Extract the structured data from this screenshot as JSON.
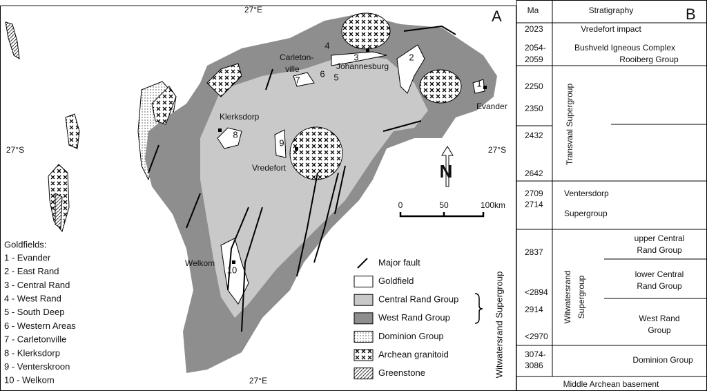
{
  "panel_a": {
    "letter": "A",
    "coords": {
      "top": "27°E",
      "bottom": "27°E",
      "left": "27°S",
      "right": "27°S"
    },
    "places": {
      "klerksdorp": "Klerksdorp",
      "vredefort": "Vredefort",
      "welkom": "Welkom",
      "carletonville": [
        "Carleton-",
        "ville"
      ],
      "johannesburg": "Johannesburg",
      "evander": "Evander"
    },
    "goldfield_numbers": [
      "1",
      "2",
      "3",
      "4",
      "5",
      "6",
      "7",
      "8",
      "9",
      "10"
    ],
    "goldfields_title": "Goldfields:",
    "goldfields": [
      "1 - Evander",
      "2 - East Rand",
      "3 - Central Rand",
      "4 - West Rand",
      "5 - South Deep",
      "6 - Western Areas",
      "7 - Carletonville",
      "8 - Klerksdorp",
      "9 - Venterskroon",
      "10 - Welkom"
    ],
    "scale": [
      "0",
      "50",
      "100km"
    ],
    "north": "N",
    "legend": [
      "Major fault",
      "Goldfield",
      "Central Rand Group",
      "West Rand Group",
      "Dominion Group",
      "Archean granitoid",
      "Greenstone"
    ],
    "legend_group": "Witwatersrand Supergroup"
  },
  "panel_b": {
    "letter": "B",
    "headers": [
      "Ma",
      "Stratigraphy"
    ],
    "ages": [
      "2023",
      [
        "2054-",
        "2059"
      ],
      "2250",
      "2350",
      "2432",
      "2642",
      "2709",
      "2714",
      "2837",
      "<2894",
      "2914",
      "<2970",
      [
        "3074-",
        "3086"
      ]
    ],
    "units": {
      "vredefort_impact": "Vredefort impact",
      "bushveld": "Bushveld Igneous Complex",
      "rooiberg": "Rooiberg Group",
      "transvaal": "Transvaal Supergroup",
      "ventersdorp": [
        "Ventersdorp",
        "Supergroup"
      ],
      "upper_central": [
        "upper Central",
        "Rand Group"
      ],
      "lower_central": [
        "lower Central",
        "Rand Group"
      ],
      "witwatersrand": [
        "Witwatersrand",
        "Supergroup"
      ],
      "west_rand": [
        "West Rand",
        "Group"
      ],
      "dominion": "Dominion Group",
      "basement": "Middle Archean basement"
    }
  }
}
